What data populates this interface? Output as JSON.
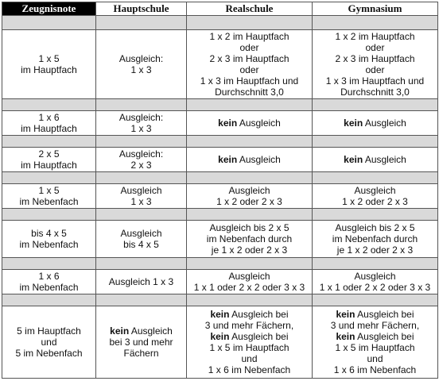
{
  "header": [
    "Zeugnisnote",
    "Hauptschule",
    "Realschule",
    "Gymnasium"
  ],
  "rows": [
    {
      "grade": [
        "1 x 5",
        "im Hauptfach"
      ],
      "haupt": [
        "Ausgleich:",
        "1 x 3"
      ],
      "real": [
        "1 x 2 im Hauptfach",
        "oder",
        "2 x 3 im Hauptfach",
        "oder",
        "1 x 3 im Hauptfach und",
        "Durchschnitt 3,0"
      ],
      "gym": [
        "1 x 2 im Hauptfach",
        "oder",
        "2 x 3 im Hauptfach",
        "oder",
        "1 x 3 im Hauptfach und",
        "Durchschnitt 3,0"
      ]
    },
    {
      "grade": [
        "1 x 6",
        "im Hauptfach"
      ],
      "haupt": [
        "Ausgleich:",
        "1 x 3"
      ],
      "real_bold": "kein",
      "real": [
        "Ausgleich"
      ],
      "gym_bold": "kein",
      "gym": [
        "Ausgleich"
      ]
    },
    {
      "grade": [
        "2 x 5",
        "im Hauptfach"
      ],
      "haupt": [
        "Ausgleich:",
        "2 x 3"
      ],
      "real_bold": "kein",
      "real": [
        "Ausgleich"
      ],
      "gym_bold": "kein",
      "gym": [
        "Ausgleich"
      ]
    },
    {
      "grade": [
        "1 x 5",
        "im Nebenfach"
      ],
      "haupt": [
        "Ausgleich",
        "1 x 3"
      ],
      "real": [
        "Ausgleich",
        "1 x 2 oder 2 x 3"
      ],
      "gym": [
        "Ausgleich",
        "1 x 2 oder 2 x 3"
      ]
    },
    {
      "grade": [
        "bis 4 x 5",
        "im Nebenfach"
      ],
      "haupt": [
        "Ausgleich",
        "bis 4 x 5"
      ],
      "real": [
        "Ausgleich bis 2 x 5",
        "im Nebenfach durch",
        "je 1 x 2 oder 2 x 3"
      ],
      "gym": [
        "Ausgleich bis 2 x 5",
        "im Nebenfach durch",
        "je 1 x 2 oder 2 x 3"
      ]
    },
    {
      "grade": [
        "1 x 6",
        "im Nebenfach"
      ],
      "haupt": [
        "Ausgleich 1 x 3"
      ],
      "real": [
        "Ausgleich",
        "1 x 1 oder 2 x 2 oder 3 x 3"
      ],
      "gym": [
        "Ausgleich",
        "1 x 1 oder 2 x 2 oder 3 x 3"
      ]
    },
    {
      "grade": [
        "5 im Hauptfach",
        "und",
        "5 im Nebenfach"
      ],
      "haupt_bold": "kein",
      "haupt": [
        "Ausgleich",
        "bei 3 und mehr",
        "Fächern"
      ],
      "real": [
        "Ausgleich bei",
        "3 und mehr Fächern,",
        "Ausgleich bei",
        "1 x 5 im Hauptfach",
        "und",
        "1 x 6 im Nebenfach"
      ],
      "gym": [
        "Ausgleich bei",
        "3 und mehr Fächern,",
        "Ausgleich bei",
        "1 x 5 im Hauptfach",
        "und",
        "1 x 6 im Nebenfach"
      ],
      "bold_word": "kein"
    }
  ]
}
